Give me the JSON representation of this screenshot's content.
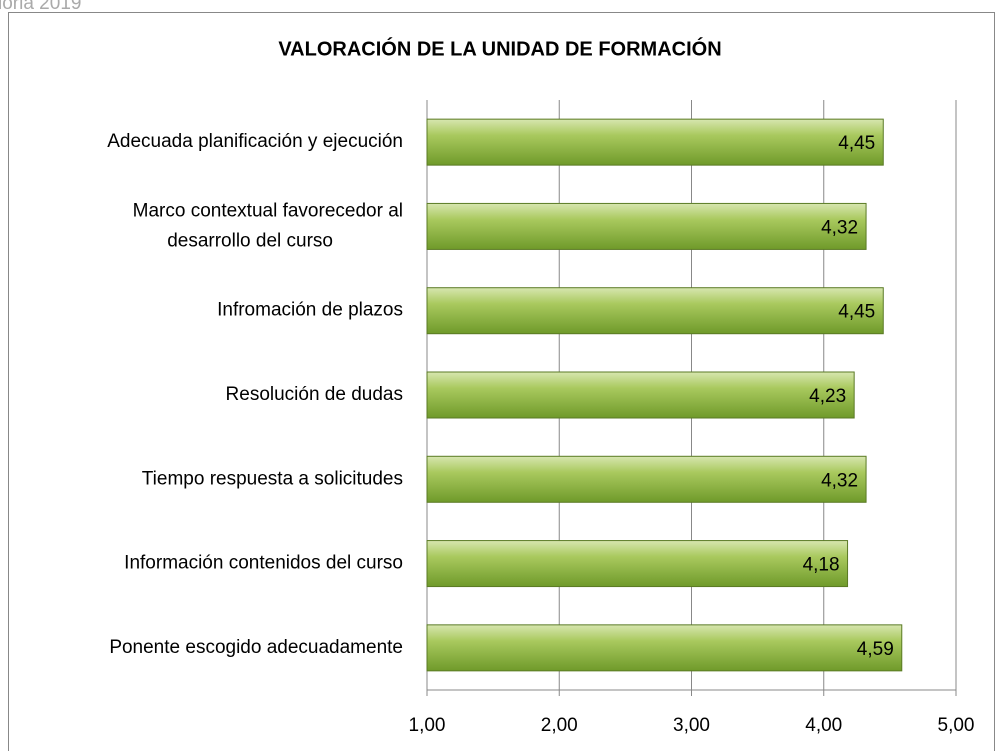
{
  "header_text": "ioria 2019",
  "chart_data": {
    "type": "barh",
    "title": "VALORACIÓN DE LA UNIDAD DE FORMACIÓN",
    "categories": [
      "Adecuada planificación y ejecución",
      "Marco contextual favorecedor al\ndesarrollo del curso",
      "Infromación de plazos",
      "Resolución de dudas",
      "Tiempo respuesta a solicitudes",
      "Información contenidos del curso",
      "Ponente escogido adecuadamente"
    ],
    "values": [
      4.45,
      4.32,
      4.45,
      4.23,
      4.32,
      4.18,
      4.59
    ],
    "value_labels": [
      "4,45",
      "4,32",
      "4,45",
      "4,23",
      "4,32",
      "4,18",
      "4,59"
    ],
    "color": "#9bbb59",
    "xlim": [
      1,
      5
    ],
    "xticks": [
      {
        "value": 1,
        "label": "1,00"
      },
      {
        "value": 2,
        "label": "2,00"
      },
      {
        "value": 3,
        "label": "3,00"
      },
      {
        "value": 4,
        "label": "4,00"
      },
      {
        "value": 5,
        "label": "5,00"
      }
    ],
    "grid": true
  }
}
